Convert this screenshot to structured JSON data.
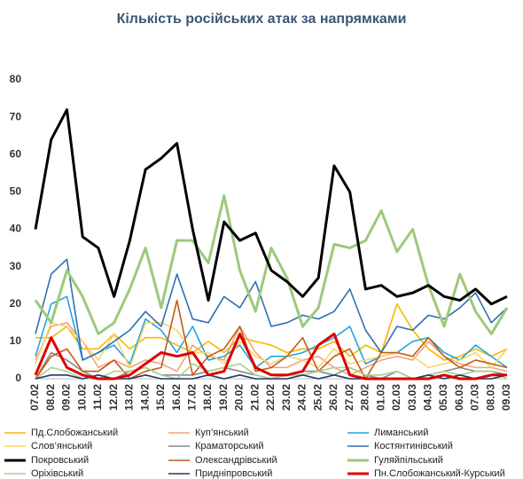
{
  "chart_data": {
    "type": "line",
    "title": "Кількість російських атак за напрямками",
    "categories": [
      "07.02",
      "08.02",
      "09.02",
      "10.02",
      "11.02",
      "12.02",
      "13.02",
      "14.02",
      "15.02",
      "16.02",
      "17.02",
      "18.02",
      "19.02",
      "20.02",
      "21.02",
      "22.02",
      "23.02",
      "24.02",
      "25.02",
      "26.02",
      "27.02",
      "28.02",
      "01.03",
      "02.03",
      "03.03",
      "04.03",
      "05.03",
      "06.03",
      "07.03",
      "08.03",
      "09.03"
    ],
    "ylim": [
      0,
      80
    ],
    "yticks": [
      0,
      10,
      20,
      30,
      40,
      50,
      60,
      70,
      80
    ],
    "grid": false,
    "legend": "bottom",
    "series": [
      {
        "name": "Пд.Слобожанський",
        "color": "#f5b800",
        "values": [
          11,
          11,
          14,
          8,
          8,
          12,
          8,
          11,
          11,
          9,
          7,
          10,
          7,
          11,
          10,
          9,
          7,
          8,
          8,
          10,
          6,
          9,
          7,
          20,
          13,
          8,
          5,
          6,
          8,
          6,
          8
        ]
      },
      {
        "name": "Куп’янський",
        "color": "#f2a37a",
        "values": [
          5,
          14,
          15,
          10,
          3,
          5,
          3,
          5,
          4,
          2,
          9,
          6,
          5,
          14,
          7,
          3,
          3,
          5,
          6,
          3,
          1,
          3,
          5,
          6,
          5,
          10,
          6,
          4,
          3,
          3,
          2
        ]
      },
      {
        "name": "Лиманський",
        "color": "#1ea6e0",
        "values": [
          6,
          20,
          22,
          5,
          7,
          9,
          4,
          16,
          13,
          7,
          14,
          5,
          6,
          9,
          3,
          6,
          6,
          7,
          9,
          11,
          14,
          4,
          6,
          7,
          10,
          11,
          7,
          5,
          9,
          6,
          3
        ]
      },
      {
        "name": "Слов’янський",
        "color": "#f7d56a",
        "values": [
          4,
          15,
          14,
          10,
          5,
          12,
          3,
          15,
          15,
          13,
          7,
          7,
          4,
          10,
          6,
          4,
          6,
          5,
          3,
          8,
          4,
          5,
          6,
          7,
          6,
          3,
          4,
          5,
          7,
          3,
          8
        ]
      },
      {
        "name": "Краматорський",
        "color": "#8a8a8a",
        "values": [
          0,
          7,
          5,
          2,
          0,
          0,
          2,
          3,
          1,
          1,
          1,
          2,
          3,
          2,
          1,
          0,
          1,
          2,
          2,
          1,
          3,
          1,
          0,
          2,
          0,
          1,
          2,
          3,
          2,
          2,
          1
        ]
      },
      {
        "name": "Костянтинівський",
        "color": "#2e6fb0",
        "values": [
          12,
          28,
          32,
          5,
          7,
          10,
          13,
          18,
          14,
          28,
          16,
          15,
          22,
          19,
          26,
          14,
          15,
          17,
          16,
          18,
          24,
          13,
          7,
          14,
          13,
          17,
          16,
          19,
          23,
          15,
          19
        ]
      },
      {
        "name": "Покровський",
        "color": "#000000",
        "values": [
          40,
          64,
          72,
          38,
          35,
          22,
          37,
          56,
          59,
          63,
          40,
          21,
          42,
          37,
          39,
          29,
          26,
          22,
          27,
          57,
          50,
          24,
          25,
          22,
          23,
          25,
          22,
          21,
          24,
          20,
          22
        ]
      },
      {
        "name": "Олександрівський",
        "color": "#c55a11",
        "values": [
          0,
          6,
          8,
          2,
          2,
          5,
          0,
          2,
          3,
          21,
          1,
          6,
          8,
          14,
          2,
          3,
          6,
          11,
          2,
          6,
          8,
          0,
          7,
          7,
          6,
          11,
          6,
          3,
          5,
          4,
          3
        ]
      },
      {
        "name": "Гуляйпільський",
        "color": "#9dc97a",
        "values": [
          21,
          15,
          29,
          22,
          12,
          15,
          24,
          35,
          19,
          37,
          37,
          31,
          49,
          29,
          18,
          35,
          27,
          14,
          19,
          36,
          35,
          37,
          45,
          34,
          40,
          25,
          14,
          28,
          18,
          12,
          19
        ]
      },
      {
        "name": "Оріхівський",
        "color": "#a9d18e",
        "values": [
          0,
          3,
          2,
          0,
          0,
          2,
          2,
          3,
          1,
          0,
          4,
          2,
          3,
          4,
          1,
          0,
          1,
          1,
          2,
          3,
          3,
          1,
          1,
          2,
          0,
          1,
          2,
          1,
          2,
          2,
          0
        ]
      },
      {
        "name": "Придніпровський",
        "color": "#1f3864",
        "values": [
          0,
          1,
          1,
          0,
          1,
          0,
          0,
          1,
          0,
          0,
          0,
          1,
          0,
          1,
          0,
          0,
          0,
          1,
          0,
          1,
          0,
          0,
          0,
          0,
          0,
          1,
          0,
          1,
          0,
          0,
          1
        ]
      },
      {
        "name": "Пн.Слобожанський-Курський",
        "color": "#e00000",
        "values": [
          1,
          11,
          3,
          1,
          0,
          0,
          1,
          4,
          7,
          6,
          7,
          1,
          2,
          12,
          3,
          1,
          1,
          2,
          9,
          12,
          1,
          0,
          0,
          0,
          0,
          0,
          1,
          0,
          0,
          1,
          1
        ]
      }
    ]
  }
}
